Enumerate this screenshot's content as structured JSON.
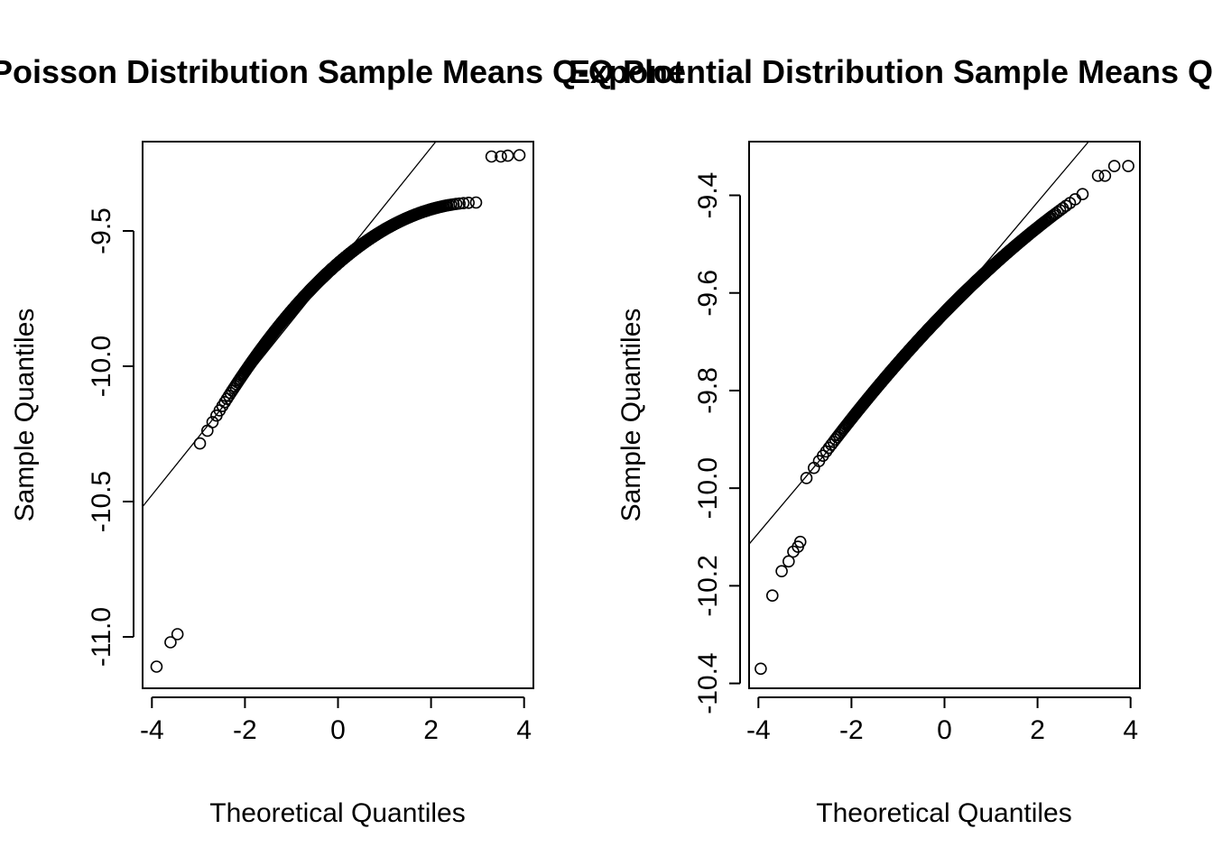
{
  "chart_data": [
    {
      "type": "scatter",
      "title": "Poisson Distribution Sample Means Q-Q Plot",
      "xlabel": "Theoretical Quantiles",
      "ylabel": "Sample Quantiles",
      "xlim": [
        -4.2,
        4.2
      ],
      "ylim": [
        -11.19,
        -9.17
      ],
      "xticks": [
        -4,
        -2,
        0,
        2,
        4
      ],
      "xtick_labels": [
        "-4",
        "-2",
        "0",
        "2",
        "4"
      ],
      "yticks": [
        -11.0,
        -10.5,
        -10.0,
        -9.5
      ],
      "ytick_labels": [
        "-11.0",
        "-10.5",
        "-10.0",
        "-9.5"
      ],
      "reference_line": {
        "intercept": -9.62,
        "slope": 0.214
      },
      "curve": {
        "center": -9.62,
        "slope": 0.15,
        "curvature": -0.025,
        "max": -9.22
      },
      "outliers": [
        {
          "x": -3.9,
          "y": -11.11
        },
        {
          "x": -3.6,
          "y": -11.02
        },
        {
          "x": -3.45,
          "y": -10.99
        },
        {
          "x": 3.3,
          "y": -9.225
        },
        {
          "x": 3.5,
          "y": -9.225
        },
        {
          "x": 3.65,
          "y": -9.222
        },
        {
          "x": 3.9,
          "y": -9.22
        }
      ],
      "grid": false,
      "legend": false
    },
    {
      "type": "scatter",
      "title": "Exponential Distribution Sample Means Q-Q Plot",
      "xlabel": "Theoretical Quantiles",
      "ylabel": "Sample Quantiles",
      "xlim": [
        -4.2,
        4.2
      ],
      "ylim": [
        -10.41,
        -9.29
      ],
      "xticks": [
        -4,
        -2,
        0,
        2,
        4
      ],
      "xtick_labels": [
        "-4",
        "-2",
        "0",
        "2",
        "4"
      ],
      "yticks": [
        -10.4,
        -10.2,
        -10.0,
        -9.8,
        -9.6,
        -9.4
      ],
      "ytick_labels": [
        "-10.4",
        "-10.2",
        "-10.0",
        "-9.8",
        "-9.6",
        "-9.4"
      ],
      "reference_line": {
        "intercept": -9.64,
        "slope": 0.113
      },
      "curve": {
        "center": -9.64,
        "slope": 0.098,
        "curvature": -0.0055,
        "max": -9.38
      },
      "outliers": [
        {
          "x": -3.95,
          "y": -10.37
        },
        {
          "x": -3.7,
          "y": -10.22
        },
        {
          "x": -3.5,
          "y": -10.17
        },
        {
          "x": -3.35,
          "y": -10.15
        },
        {
          "x": -3.25,
          "y": -10.13
        },
        {
          "x": -3.15,
          "y": -10.12
        },
        {
          "x": -3.1,
          "y": -10.11
        },
        {
          "x": 3.3,
          "y": -9.36
        },
        {
          "x": 3.45,
          "y": -9.36
        },
        {
          "x": 3.65,
          "y": -9.34
        },
        {
          "x": 3.95,
          "y": -9.34
        }
      ],
      "grid": false,
      "legend": false
    }
  ]
}
